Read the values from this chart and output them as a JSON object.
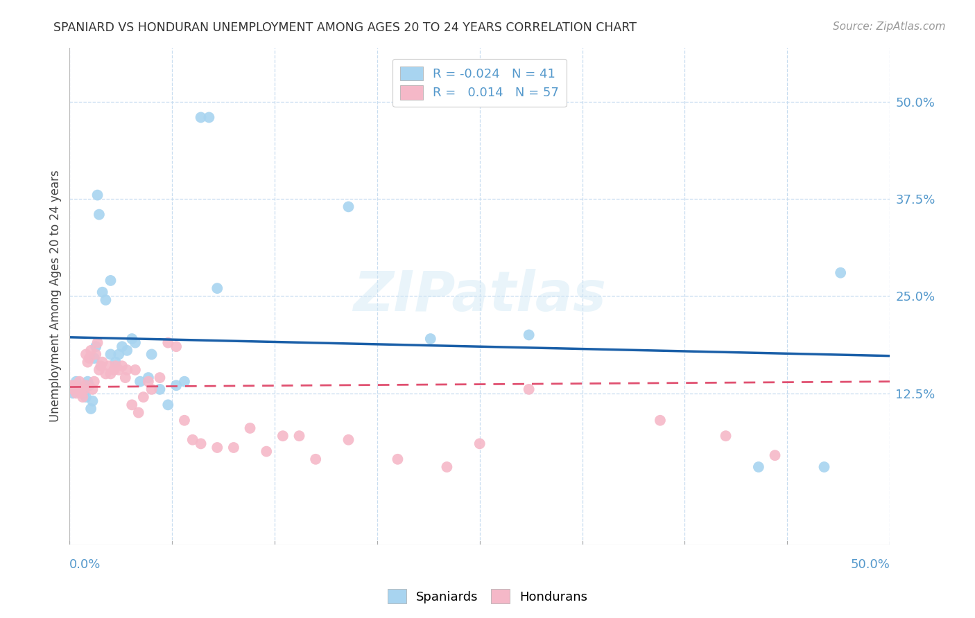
{
  "title": "SPANIARD VS HONDURAN UNEMPLOYMENT AMONG AGES 20 TO 24 YEARS CORRELATION CHART",
  "source": "Source: ZipAtlas.com",
  "ylabel": "Unemployment Among Ages 20 to 24 years",
  "ytick_labels": [
    "50.0%",
    "37.5%",
    "25.0%",
    "12.5%"
  ],
  "ytick_values": [
    0.5,
    0.375,
    0.25,
    0.125
  ],
  "xlim": [
    0.0,
    0.5
  ],
  "ylim": [
    -0.07,
    0.57
  ],
  "spaniard_color": "#a8d4f0",
  "honduran_color": "#f5b8c8",
  "spaniard_line_color": "#1a5fa8",
  "honduran_line_color": "#e05070",
  "background_color": "#ffffff",
  "spaniards_x": [
    0.002,
    0.004,
    0.006,
    0.008,
    0.009,
    0.01,
    0.01,
    0.011,
    0.012,
    0.013,
    0.014,
    0.015,
    0.016,
    0.017,
    0.018,
    0.02,
    0.022,
    0.025,
    0.025,
    0.028,
    0.03,
    0.032,
    0.035,
    0.038,
    0.04,
    0.043,
    0.048,
    0.05,
    0.055,
    0.06,
    0.065,
    0.07,
    0.08,
    0.085,
    0.09,
    0.17,
    0.22,
    0.28,
    0.42,
    0.46,
    0.47
  ],
  "spaniards_y": [
    0.125,
    0.14,
    0.13,
    0.13,
    0.125,
    0.135,
    0.12,
    0.14,
    0.135,
    0.105,
    0.115,
    0.17,
    0.185,
    0.38,
    0.355,
    0.255,
    0.245,
    0.27,
    0.175,
    0.165,
    0.175,
    0.185,
    0.18,
    0.195,
    0.19,
    0.14,
    0.145,
    0.175,
    0.13,
    0.11,
    0.135,
    0.14,
    0.48,
    0.48,
    0.26,
    0.365,
    0.195,
    0.2,
    0.03,
    0.03,
    0.28
  ],
  "hondurans_x": [
    0.001,
    0.002,
    0.003,
    0.004,
    0.005,
    0.006,
    0.007,
    0.008,
    0.009,
    0.01,
    0.01,
    0.011,
    0.012,
    0.013,
    0.014,
    0.015,
    0.016,
    0.017,
    0.018,
    0.019,
    0.02,
    0.022,
    0.024,
    0.025,
    0.027,
    0.028,
    0.03,
    0.032,
    0.034,
    0.035,
    0.038,
    0.04,
    0.042,
    0.045,
    0.048,
    0.05,
    0.055,
    0.06,
    0.065,
    0.07,
    0.075,
    0.08,
    0.09,
    0.1,
    0.11,
    0.12,
    0.13,
    0.14,
    0.15,
    0.17,
    0.2,
    0.23,
    0.25,
    0.28,
    0.36,
    0.4,
    0.43
  ],
  "hondurans_y": [
    0.135,
    0.13,
    0.135,
    0.125,
    0.13,
    0.14,
    0.125,
    0.12,
    0.13,
    0.135,
    0.175,
    0.165,
    0.17,
    0.18,
    0.13,
    0.14,
    0.175,
    0.19,
    0.155,
    0.16,
    0.165,
    0.15,
    0.16,
    0.15,
    0.155,
    0.16,
    0.155,
    0.16,
    0.145,
    0.155,
    0.11,
    0.155,
    0.1,
    0.12,
    0.14,
    0.13,
    0.145,
    0.19,
    0.185,
    0.09,
    0.065,
    0.06,
    0.055,
    0.055,
    0.08,
    0.05,
    0.07,
    0.07,
    0.04,
    0.065,
    0.04,
    0.03,
    0.06,
    0.13,
    0.09,
    0.07,
    0.045
  ],
  "sp_line_x": [
    0.0,
    0.5
  ],
  "sp_line_y": [
    0.197,
    0.173
  ],
  "ho_line_x": [
    0.0,
    0.5
  ],
  "ho_line_y": [
    0.133,
    0.14
  ]
}
